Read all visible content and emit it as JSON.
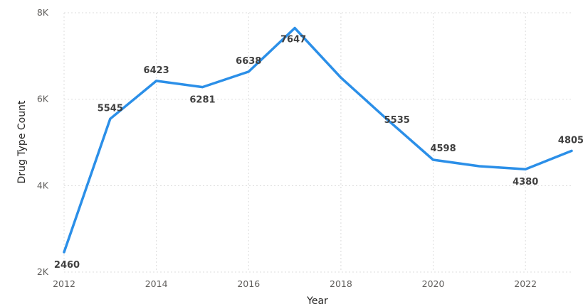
{
  "chart_data": {
    "type": "line",
    "title": "",
    "xlabel": "Year",
    "ylabel": "Drug Type Count",
    "x": [
      2012,
      2013,
      2014,
      2015,
      2016,
      2017,
      2018,
      2019,
      2020,
      2021,
      2022,
      2023
    ],
    "series": [
      {
        "values": [
          2460,
          5545,
          6423,
          6281,
          6638,
          7647,
          6500,
          5535,
          4598,
          4450,
          4380,
          4805
        ],
        "labels": [
          "2460",
          "5545",
          "6423",
          "6281",
          "6638",
          "7647",
          "",
          "5535",
          "4598",
          "",
          "4380",
          "4805"
        ],
        "color": "#2b8fe8"
      }
    ],
    "xlim": [
      2012,
      2023
    ],
    "ylim": [
      2000,
      8000
    ],
    "x_ticks": [
      "2012",
      "2014",
      "2016",
      "2018",
      "2020",
      "2022"
    ],
    "y_ticks": [
      "2K",
      "4K",
      "6K",
      "8K"
    ],
    "grid": true,
    "legend": "none"
  }
}
